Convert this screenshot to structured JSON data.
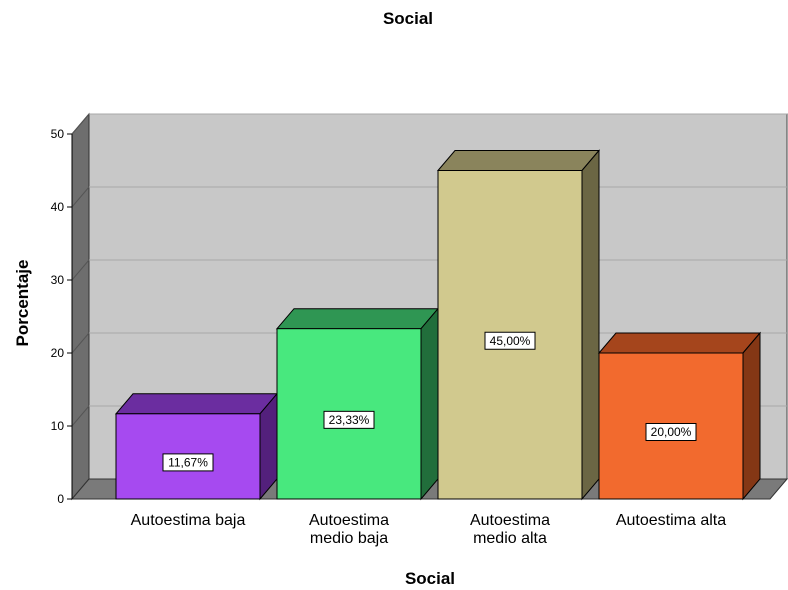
{
  "chart_data": {
    "type": "bar",
    "title": "Social",
    "xlabel": "Social",
    "ylabel": "Porcentaje",
    "ylim": [
      0,
      50
    ],
    "yticks": [
      0,
      10,
      20,
      30,
      40,
      50
    ],
    "grid": true,
    "categories": [
      [
        "Autoestima baja"
      ],
      [
        "Autoestima",
        "medio baja"
      ],
      [
        "Autoestima",
        "medio alta"
      ],
      [
        "Autoestima alta"
      ]
    ],
    "values": [
      11.67,
      23.33,
      45.0,
      20.0
    ],
    "data_labels": [
      "11,67%",
      "23,33%",
      "45,00%",
      "20,00%"
    ],
    "colors": [
      {
        "front": "#a64af0",
        "top": "#6b2da0",
        "side": "#53207c"
      },
      {
        "front": "#48e87e",
        "top": "#2f9653",
        "side": "#216e3b"
      },
      {
        "front": "#d1c98e",
        "top": "#8a845c",
        "side": "#6b6644"
      },
      {
        "front": "#f26a2e",
        "top": "#a5451c",
        "side": "#843715"
      }
    ]
  }
}
